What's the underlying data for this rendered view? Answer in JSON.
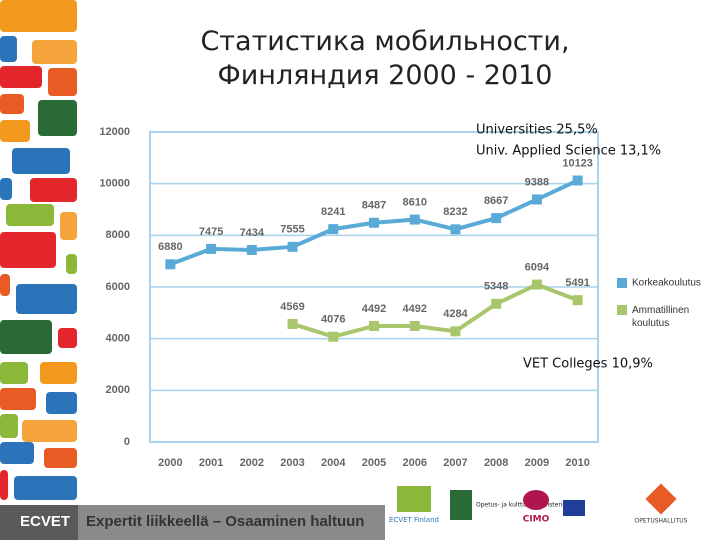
{
  "chart_data": {
    "type": "line",
    "title": [
      "Статистика мобильности,",
      "Финляндия 2000 - 2010"
    ],
    "categories": [
      "2000",
      "2001",
      "2002",
      "2003",
      "2004",
      "2005",
      "2006",
      "2007",
      "2008",
      "2009",
      "2010"
    ],
    "series": [
      {
        "name": "Korkeakoulutus",
        "color": "#5aaad8",
        "values": [
          6880,
          7475,
          7434,
          7555,
          8241,
          8487,
          8610,
          8232,
          8667,
          9388,
          10123
        ]
      },
      {
        "name": "Ammatillinen koulutus",
        "color": "#a8c66c",
        "values": [
          null,
          null,
          null,
          4569,
          4076,
          4492,
          4492,
          4284,
          5348,
          6094,
          5491
        ]
      }
    ],
    "ylim": [
      0,
      12000
    ],
    "yticks": [
      0,
      2000,
      4000,
      6000,
      8000,
      10000,
      12000
    ],
    "grid": true,
    "annotations": [
      "Universities 25,5%",
      "Univ. Applied Science 13,1%",
      "VET Colleges 10,9%"
    ]
  },
  "footer": {
    "brand": "ECVET",
    "slogan": "Expertit liikkeellä – Osaaminen haltuun",
    "logos": [
      "ECVET Finland",
      "Opetus- ja kulttuuri-ministeriö",
      "CIMO",
      "OPETUSHALLITUS"
    ]
  }
}
